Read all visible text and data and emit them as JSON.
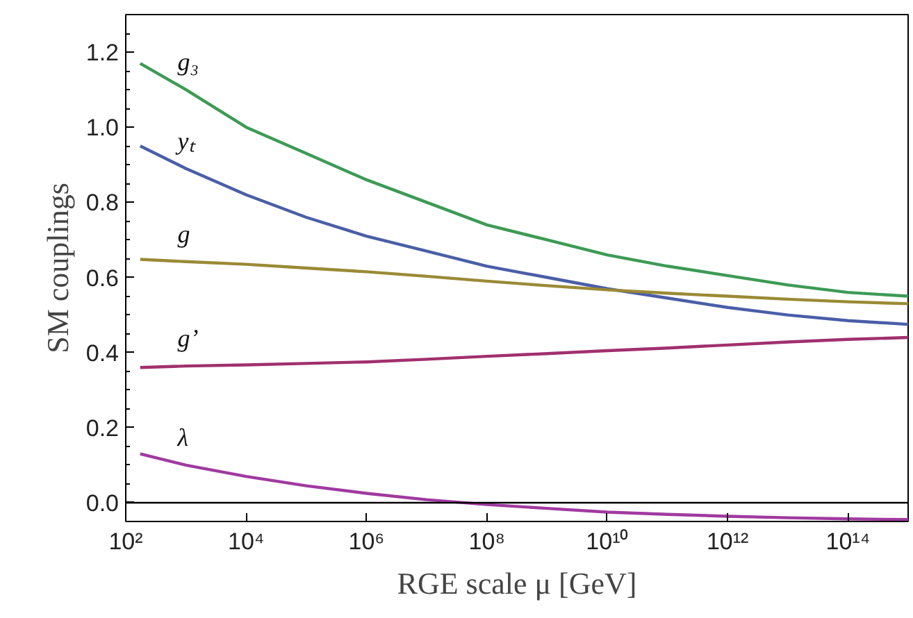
{
  "chart_data": {
    "type": "line",
    "xlabel": "RGE scale μ [GeV]",
    "ylabel": "SM couplings",
    "log": "x",
    "grid": false,
    "xlim": [
      100,
      1000000000000000.0
    ],
    "ylim": [
      -0.05,
      1.3
    ],
    "xticks": [
      {
        "value": 100,
        "label": "10²"
      },
      {
        "value": 10000,
        "label": "10⁴"
      },
      {
        "value": 1000000,
        "label": "10⁶"
      },
      {
        "value": 100000000,
        "label": "10⁸"
      },
      {
        "value": 10000000000,
        "label": "10¹⁰"
      },
      {
        "value": 1000000000000,
        "label": "10¹²"
      },
      {
        "value": 100000000000000,
        "label": "10¹⁴"
      }
    ],
    "yticks": [
      {
        "value": 0,
        "label": "0.0"
      },
      {
        "value": 0.2,
        "label": "0.2"
      },
      {
        "value": 0.4,
        "label": "0.4"
      },
      {
        "value": 0.6,
        "label": "0.6"
      },
      {
        "value": 0.8,
        "label": "0.8"
      },
      {
        "value": 1.0,
        "label": "1.0"
      },
      {
        "value": 1.2,
        "label": "1.2"
      }
    ],
    "x": [
      174,
      1000,
      10000,
      100000,
      1000000,
      10000000,
      100000000,
      1000000000,
      10000000000,
      100000000000,
      1000000000000,
      10000000000000,
      100000000000000,
      1000000000000000
    ],
    "ref_lines": [
      {
        "axis": "y",
        "value": 0,
        "color": "#000000"
      }
    ],
    "series": [
      {
        "name": "g₃",
        "color": "#3d9a55",
        "values": [
          1.17,
          1.1,
          1.0,
          0.93,
          0.86,
          0.8,
          0.74,
          0.7,
          0.66,
          0.63,
          0.605,
          0.58,
          0.56,
          0.55
        ]
      },
      {
        "name": "yₜ",
        "color": "#4a5ea8",
        "values": [
          0.95,
          0.89,
          0.82,
          0.76,
          0.71,
          0.67,
          0.63,
          0.6,
          0.57,
          0.545,
          0.52,
          0.5,
          0.485,
          0.475
        ]
      },
      {
        "name": "g",
        "color": "#9a8a35",
        "values": [
          0.648,
          0.642,
          0.635,
          0.625,
          0.615,
          0.603,
          0.59,
          0.578,
          0.567,
          0.558,
          0.55,
          0.542,
          0.535,
          0.53
        ]
      },
      {
        "name": "g’",
        "color": "#a0306e",
        "values": [
          0.36,
          0.364,
          0.367,
          0.371,
          0.375,
          0.382,
          0.39,
          0.397,
          0.405,
          0.412,
          0.42,
          0.428,
          0.435,
          0.44
        ]
      },
      {
        "name": "λ",
        "color": "#a03aa0",
        "values": [
          0.13,
          0.1,
          0.07,
          0.045,
          0.025,
          0.008,
          -0.005,
          -0.015,
          -0.025,
          -0.031,
          -0.036,
          -0.04,
          -0.043,
          -0.045
        ]
      }
    ]
  }
}
